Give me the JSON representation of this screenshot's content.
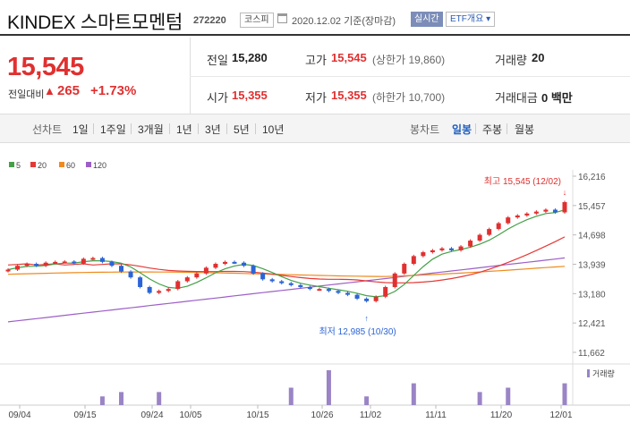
{
  "header": {
    "name": "KINDEX 스마트모멘텀",
    "code": "272220",
    "market": "코스피",
    "date": "2020.12.02 기준(장마감)",
    "realtime_btn": "실시간",
    "etf_btn": "ETF개요 ▾"
  },
  "summary": {
    "price": "15,545",
    "change_label": "전일대비",
    "change_arrow": "▲",
    "change": "265",
    "change_pct": "+1.73%",
    "prev_label": "전일",
    "prev": "15,280",
    "high_label": "고가",
    "high": "15,545",
    "upper_limit": "(상한가 19,860)",
    "volume_label": "거래량",
    "volume": "20",
    "open_label": "시가",
    "open": "15,355",
    "low_label": "저가",
    "low": "15,355",
    "lower_limit": "(하한가 10,700)",
    "amount_label": "거래대금",
    "amount": "0 백만"
  },
  "tabs": {
    "line_label": "선차트",
    "line_items": [
      "1일",
      "1주일",
      "3개월",
      "1년",
      "3년",
      "5년",
      "10년"
    ],
    "candle_label": "봉차트",
    "candle_items": [
      "일봉",
      "주봉",
      "월봉"
    ]
  },
  "colors": {
    "up": "#e03030",
    "down": "#2b64d6",
    "ma5": "#43a047",
    "ma20": "#e53935",
    "ma60": "#ef8a1e",
    "ma120": "#9c5fc7",
    "volume": "#9a84c6"
  },
  "chart_data": {
    "type": "candlestick",
    "legend": [
      "5",
      "20",
      "60",
      "120"
    ],
    "y_ticks": [
      16216,
      15457,
      14698,
      13939,
      13180,
      12421,
      11662
    ],
    "ylim": [
      11662,
      16216
    ],
    "x_ticks": [
      "09/04",
      "09/15",
      "09/24",
      "10/05",
      "10/15",
      "10/26",
      "11/02",
      "11/11",
      "11/20",
      "12/01"
    ],
    "max_label": "최고 15,545 (12/02)",
    "min_label": "최저 12,985 (10/30)",
    "volume_label": "거래량",
    "close": [
      13800,
      13900,
      13950,
      13900,
      13980,
      14000,
      14010,
      13960,
      14080,
      14100,
      14000,
      13900,
      13750,
      13600,
      13350,
      13200,
      13250,
      13300,
      13500,
      13600,
      13700,
      13850,
      13950,
      14000,
      13980,
      13900,
      13700,
      13550,
      13500,
      13450,
      13400,
      13350,
      13300,
      13300,
      13250,
      13200,
      13150,
      13050,
      12985,
      13100,
      13350,
      13700,
      13950,
      14150,
      14250,
      14300,
      14350,
      14300,
      14400,
      14550,
      14700,
      14850,
      15000,
      15150,
      15200,
      15250,
      15300,
      15350,
      15280,
      15545
    ]
  }
}
